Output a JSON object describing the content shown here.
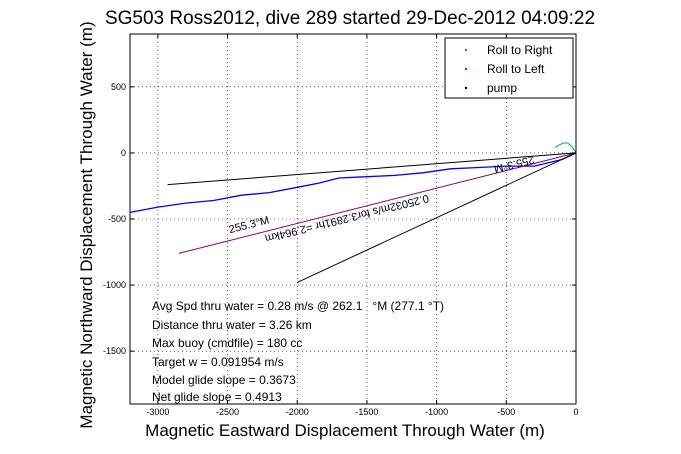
{
  "chart_data": {
    "type": "line",
    "title": "SG503 Ross2012, dive 289 started 29-Dec-2012 04:09:22",
    "xlabel": "Magnetic Eastward Displacement Through Water (m)",
    "ylabel": "Magnetic Northward Displacement Through Water (m)",
    "xlim": [
      -3200,
      0
    ],
    "ylim": [
      -1900,
      900
    ],
    "xticks": [
      -3000,
      -2500,
      -2000,
      -1500,
      -1000,
      -500,
      0
    ],
    "yticks": [
      500,
      0,
      -500,
      -1000,
      -1500
    ],
    "grid": true,
    "legend_position": "top-right",
    "legend": [
      {
        "name": "Roll to Right",
        "color": "#00aa00",
        "marker": "."
      },
      {
        "name": "Roll to Left",
        "color": "#ff0000",
        "marker": "."
      },
      {
        "name": "pump",
        "color": "#000000",
        "marker": "."
      }
    ],
    "series": [
      {
        "color": "#0000ff",
        "x": [
          0,
          -100,
          -300,
          -500,
          -700,
          -900,
          -1100,
          -1300,
          -1500,
          -1700,
          -1850,
          -2000,
          -2200,
          -2400,
          -2600,
          -2800,
          -3000,
          -3200
        ],
        "y": [
          0,
          -50,
          -100,
          -100,
          -110,
          -120,
          -150,
          -170,
          -180,
          -190,
          -230,
          -260,
          -300,
          -320,
          -360,
          -380,
          -410,
          -450
        ]
      },
      {
        "color": "#800080",
        "x": [
          0,
          -2850
        ],
        "y": [
          0,
          -760
        ]
      },
      {
        "color": "#000000",
        "x": [
          0,
          -2000
        ],
        "y": [
          0,
          -980
        ]
      },
      {
        "color": "#000000",
        "x": [
          0,
          -2930
        ],
        "y": [
          0,
          -240
        ]
      },
      {
        "color": "#00aaaa",
        "x": [
          0,
          -30,
          -60,
          -90,
          -120,
          -150
        ],
        "y": [
          0,
          50,
          75,
          75,
          60,
          40
        ]
      }
    ],
    "annotations": [
      {
        "text": "0.25032m/s for3.2891hr =2.964km",
        "x": -1650,
        "y": -470,
        "rotate": 166
      },
      {
        "text": "255.3°M",
        "x": -450,
        "y": -60,
        "rotate": 166
      },
      {
        "text": "255.3°M",
        "x": -2340,
        "y": -570,
        "rotate": -14
      }
    ]
  },
  "stats": [
    "Avg Spd thru water = 0.28 m/s @ 262.1   °M (277.1 °T)",
    "Distance thru water = 3.26 km",
    "Max buoy (cmdfile) = 180 cc",
    "Target w = 0.091954 m/s",
    "Model glide slope = 0.3673",
    "Net glide slope = 0.4913"
  ],
  "colors": {
    "axes": "#000000",
    "grid": "#000000",
    "background": "#ffffff"
  }
}
